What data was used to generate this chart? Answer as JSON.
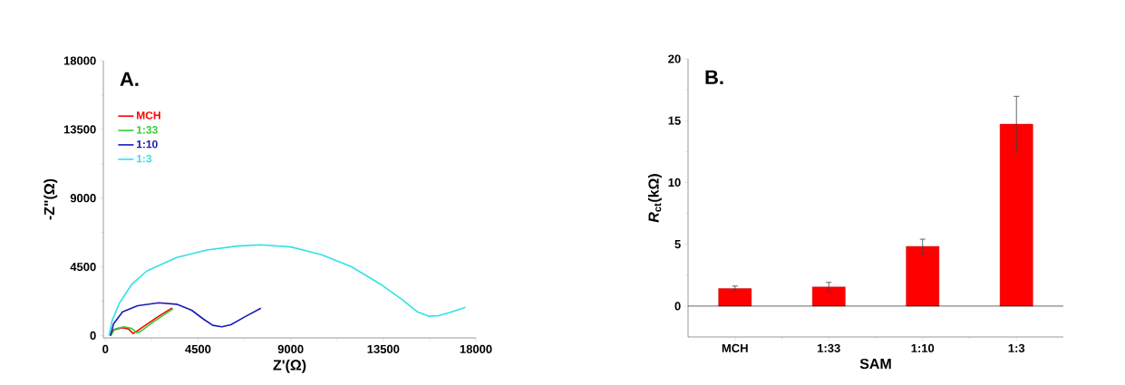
{
  "chart_data": [
    {
      "type": "line",
      "annotations": [
        "A."
      ],
      "xlabel": "Z'(Ω)",
      "ylabel": "-Z\"(Ω)",
      "xlim": [
        -100,
        18000
      ],
      "ylim": [
        -150,
        18000
      ],
      "xticks": [
        0,
        4500,
        9000,
        13500,
        18000
      ],
      "yticks": [
        0,
        4500,
        9000,
        13500,
        18000
      ],
      "legend": "top left",
      "grid": false,
      "marker": "none",
      "line_style": "solid",
      "series": [
        {
          "name": "MCH",
          "color": "#ff0000",
          "x": [
            219,
            395,
            833,
            1125,
            1344,
            1490,
            2002,
            2586,
            3244
          ],
          "values": [
            0,
            375,
            513,
            434,
            138,
            257,
            730,
            1263,
            1816
          ]
        },
        {
          "name": "1:33",
          "color": "#33cc33",
          "x": [
            248,
            468,
            906,
            1271,
            1534,
            1709,
            2294,
            3288
          ],
          "values": [
            0,
            434,
            572,
            474,
            178,
            276,
            868,
            1757
          ]
        },
        {
          "name": "1:10",
          "color": "#1a1ab8",
          "x": [
            248,
            395,
            833,
            1563,
            2586,
            3463,
            4193,
            4778,
            5216,
            5655,
            6093,
            6823,
            7554
          ],
          "values": [
            0,
            770,
            1559,
            1954,
            2151,
            2053,
            1658,
            1066,
            671,
            572,
            711,
            1263,
            1796
          ]
        },
        {
          "name": "1:3",
          "color": "#33e0e8",
          "x": [
            175,
            321,
            687,
            1271,
            2002,
            3463,
            4924,
            6385,
            7554,
            9015,
            10476,
            11938,
            13399,
            14421,
            15151,
            15736,
            16175,
            16760,
            17489
          ],
          "values": [
            0,
            967,
            2151,
            3336,
            4224,
            5112,
            5605,
            5862,
            5941,
            5803,
            5309,
            4520,
            3336,
            2349,
            1559,
            1263,
            1303,
            1520,
            1855
          ]
        }
      ]
    },
    {
      "type": "bar",
      "annotations": [
        "B."
      ],
      "xlabel": "SAM",
      "ylabel": "*R*$_{ct}$(kΩ)",
      "categories": [
        "MCH",
        "1:33",
        "1:10",
        "1:3"
      ],
      "ylim": [
        -2.5,
        20
      ],
      "yticks": [
        0,
        5,
        10,
        15,
        20
      ],
      "grid": false,
      "ref_lines": [
        {
          "axis": "y",
          "value": 0
        }
      ],
      "series": [
        {
          "color": "#ff0000",
          "values": [
            1.42,
            1.55,
            4.83,
            14.72
          ],
          "errors": [
            0.2,
            0.37,
            0.58,
            2.25
          ]
        }
      ]
    }
  ]
}
